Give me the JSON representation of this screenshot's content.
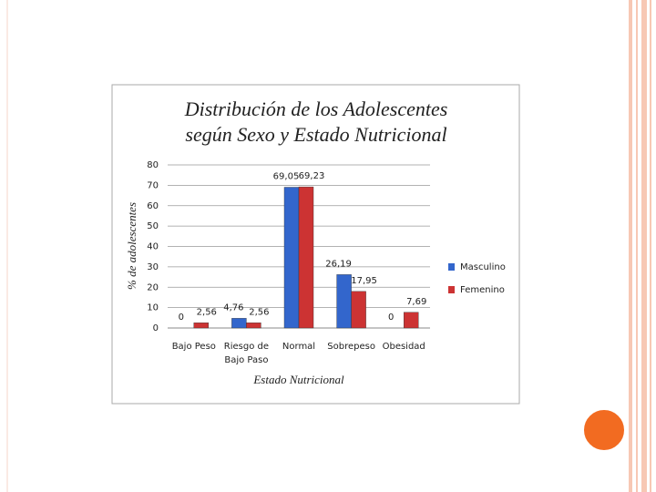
{
  "chart_data": {
    "type": "bar",
    "title": [
      "Distribución de los Adolescentes",
      "según Sexo y Estado Nutricional"
    ],
    "x_label": "Estado Nutricional",
    "y_label": "% de adolescentes",
    "categories": [
      [
        "Bajo Peso"
      ],
      [
        "Riesgo de",
        "Bajo Paso"
      ],
      [
        "Normal"
      ],
      [
        "Sobrepeso"
      ],
      [
        "Obesidad"
      ]
    ],
    "series": [
      {
        "name": "Masculino",
        "color": "#3366cc",
        "values": [
          0,
          4.76,
          69.05,
          26.19,
          0
        ],
        "value_labels": [
          "0",
          "4,76",
          "69,05",
          "26,19",
          "0"
        ]
      },
      {
        "name": "Femenino",
        "color": "#cc3333",
        "values": [
          2.56,
          2.56,
          69.23,
          17.95,
          7.69
        ],
        "value_labels": [
          "2,56",
          "2,56",
          "69,23",
          "17,95",
          "7,69"
        ]
      }
    ],
    "ylim": [
      0,
      80
    ],
    "yticks": [
      0,
      10,
      20,
      30,
      40,
      50,
      60,
      70,
      80
    ],
    "grid": true,
    "legend": "right"
  }
}
